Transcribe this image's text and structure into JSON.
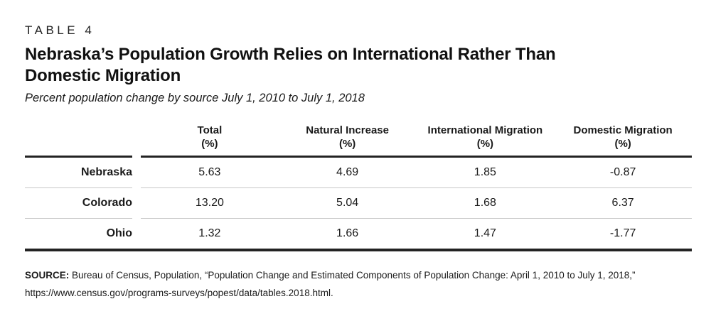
{
  "figure": {
    "label": "TABLE 4",
    "title_line1": "Nebraska’s Population Growth Relies on International Rather Than",
    "title_line2": "Domestic Migration",
    "subtitle": "Percent population change by source July 1, 2010 to July 1, 2018"
  },
  "table": {
    "headers": [
      {
        "name": "Total",
        "unit": "(%)"
      },
      {
        "name": "Natural Increase",
        "unit": "(%)"
      },
      {
        "name": "International Migration",
        "unit": "(%)"
      },
      {
        "name": "Domestic Migration",
        "unit": "(%)"
      }
    ],
    "rows": [
      {
        "label": "Nebraska",
        "values": [
          "5.63",
          "4.69",
          "1.85",
          "-0.87"
        ]
      },
      {
        "label": "Colorado",
        "values": [
          "13.20",
          "5.04",
          "1.68",
          "6.37"
        ]
      },
      {
        "label": "Ohio",
        "values": [
          "1.32",
          "1.66",
          "1.47",
          "-1.77"
        ]
      }
    ]
  },
  "source": {
    "label": "SOURCE:",
    "text": " Bureau of Census, Population, “Population Change and Estimated Components of Population Change: April 1, 2010 to July 1, 2018,” https://www.census.gov/programs-surveys/popest/data/tables.2018.html."
  },
  "colors": {
    "text": "#1a1a1a",
    "rule": "#232323",
    "separator": "#c7c7c7"
  }
}
